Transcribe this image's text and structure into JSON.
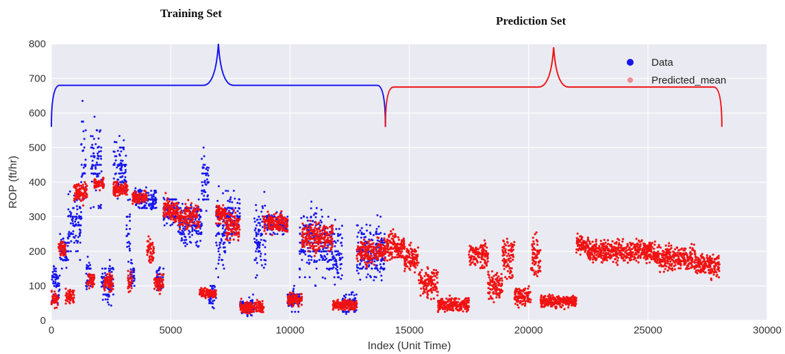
{
  "chart_data": {
    "type": "scatter",
    "annotations": [
      "Training Set",
      "Prediction Set"
    ],
    "xlabel": "Index (Unit Time)",
    "ylabel": "ROP (ft/hr)",
    "xlim": [
      0,
      30000
    ],
    "ylim": [
      0,
      800
    ],
    "xticks": [
      0,
      5000,
      10000,
      15000,
      20000,
      25000,
      30000
    ],
    "yticks": [
      0,
      100,
      200,
      300,
      400,
      500,
      600,
      700,
      800
    ],
    "grid": true,
    "legend_position": "top-right",
    "series": [
      {
        "name": "Data",
        "color": "#1515ee",
        "segments": [
          {
            "x": [
              0,
              350
            ],
            "center": 110,
            "spread": 70
          },
          {
            "x": [
              350,
              700
            ],
            "center": 200,
            "spread": 70
          },
          {
            "x": [
              700,
              1250
            ],
            "center": 280,
            "spread": 130
          },
          {
            "x": [
              1250,
              1450
            ],
            "center": 460,
            "spread": 200
          },
          {
            "x": [
              1450,
              1650
            ],
            "center": 140,
            "spread": 90
          },
          {
            "x": [
              1650,
              2100
            ],
            "center": 450,
            "spread": 170
          },
          {
            "x": [
              2100,
              2600
            ],
            "center": 110,
            "spread": 80
          },
          {
            "x": [
              2600,
              3150
            ],
            "center": 430,
            "spread": 120
          },
          {
            "x": [
              3150,
              3300
            ],
            "center": 250,
            "spread": 150
          },
          {
            "x": [
              3300,
              3500
            ],
            "center": 130,
            "spread": 50
          },
          {
            "x": [
              3500,
              4400
            ],
            "center": 350,
            "spread": 40
          },
          {
            "x": [
              4400,
              4700
            ],
            "center": 120,
            "spread": 50
          },
          {
            "x": [
              4700,
              5300
            ],
            "center": 320,
            "spread": 50
          },
          {
            "x": [
              5300,
              6300
            ],
            "center": 280,
            "spread": 100
          },
          {
            "x": [
              6300,
              6600
            ],
            "center": 400,
            "spread": 120
          },
          {
            "x": [
              6600,
              6900
            ],
            "center": 70,
            "spread": 50
          },
          {
            "x": [
              6900,
              7300
            ],
            "center": 250,
            "spread": 150
          },
          {
            "x": [
              7300,
              7900
            ],
            "center": 300,
            "spread": 100
          },
          {
            "x": [
              7900,
              8500
            ],
            "center": 40,
            "spread": 35
          },
          {
            "x": [
              8500,
              9000
            ],
            "center": 230,
            "spread": 150
          },
          {
            "x": [
              9000,
              9900
            ],
            "center": 280,
            "spread": 40
          },
          {
            "x": [
              9900,
              10400
            ],
            "center": 60,
            "spread": 40
          },
          {
            "x": [
              10400,
              11400
            ],
            "center": 230,
            "spread": 150
          },
          {
            "x": [
              11400,
              12200
            ],
            "center": 200,
            "spread": 130
          },
          {
            "x": [
              12200,
              12800
            ],
            "center": 50,
            "spread": 40
          },
          {
            "x": [
              12800,
              14000
            ],
            "center": 200,
            "spread": 120
          }
        ]
      },
      {
        "name": "Predicted_mean",
        "color": "#f01212",
        "segments": [
          {
            "x": [
              0,
              300
            ],
            "center": 60,
            "spread": 30
          },
          {
            "x": [
              300,
              600
            ],
            "center": 210,
            "spread": 40
          },
          {
            "x": [
              600,
              950
            ],
            "center": 70,
            "spread": 25
          },
          {
            "x": [
              950,
              1500
            ],
            "center": 370,
            "spread": 40
          },
          {
            "x": [
              1500,
              1800
            ],
            "center": 115,
            "spread": 30
          },
          {
            "x": [
              1800,
              2200
            ],
            "center": 395,
            "spread": 20
          },
          {
            "x": [
              2200,
              2600
            ],
            "center": 110,
            "spread": 40
          },
          {
            "x": [
              2600,
              3200
            ],
            "center": 380,
            "spread": 30
          },
          {
            "x": [
              3200,
              3400
            ],
            "center": 110,
            "spread": 40
          },
          {
            "x": [
              3400,
              4000
            ],
            "center": 355,
            "spread": 25
          },
          {
            "x": [
              4000,
              4300
            ],
            "center": 200,
            "spread": 60
          },
          {
            "x": [
              4300,
              4700
            ],
            "center": 110,
            "spread": 40
          },
          {
            "x": [
              4700,
              5300
            ],
            "center": 320,
            "spread": 50
          },
          {
            "x": [
              5300,
              6200
            ],
            "center": 300,
            "spread": 50
          },
          {
            "x": [
              6200,
              6900
            ],
            "center": 80,
            "spread": 20
          },
          {
            "x": [
              6900,
              7300
            ],
            "center": 310,
            "spread": 40
          },
          {
            "x": [
              7300,
              7900
            ],
            "center": 270,
            "spread": 60
          },
          {
            "x": [
              7900,
              8900
            ],
            "center": 40,
            "spread": 25
          },
          {
            "x": [
              8900,
              9900
            ],
            "center": 280,
            "spread": 40
          },
          {
            "x": [
              9900,
              10500
            ],
            "center": 60,
            "spread": 25
          },
          {
            "x": [
              10500,
              11800
            ],
            "center": 240,
            "spread": 60
          },
          {
            "x": [
              11800,
              12800
            ],
            "center": 45,
            "spread": 20
          },
          {
            "x": [
              12800,
              14000
            ],
            "center": 200,
            "spread": 50
          },
          {
            "x": [
              14000,
              14800
            ],
            "center": 215,
            "spread": 55
          },
          {
            "x": [
              14800,
              15400
            ],
            "center": 180,
            "spread": 60
          },
          {
            "x": [
              15400,
              16200
            ],
            "center": 110,
            "spread": 60
          },
          {
            "x": [
              16200,
              17500
            ],
            "center": 45,
            "spread": 30
          },
          {
            "x": [
              17500,
              18300
            ],
            "center": 190,
            "spread": 50
          },
          {
            "x": [
              18300,
              18900
            ],
            "center": 100,
            "spread": 60
          },
          {
            "x": [
              18900,
              19400
            ],
            "center": 180,
            "spread": 80
          },
          {
            "x": [
              19400,
              20100
            ],
            "center": 70,
            "spread": 40
          },
          {
            "x": [
              20100,
              20500
            ],
            "center": 180,
            "spread": 90
          },
          {
            "x": [
              20500,
              22000
            ],
            "center": 55,
            "spread": 25
          },
          {
            "x": [
              22000,
              22500
            ],
            "center": 220,
            "spread": 40
          },
          {
            "x": [
              22500,
              24500
            ],
            "center": 200,
            "spread": 45
          },
          {
            "x": [
              24500,
              25300
            ],
            "center": 200,
            "spread": 45
          },
          {
            "x": [
              25300,
              27000
            ],
            "center": 180,
            "spread": 50
          },
          {
            "x": [
              27000,
              28000
            ],
            "center": 160,
            "spread": 50
          }
        ]
      }
    ],
    "brackets": [
      {
        "series": "Data",
        "x_start": 0,
        "x_end": 14000,
        "y_level": 680,
        "y_peak": 800,
        "y_end": 560
      },
      {
        "series": "Predicted_mean",
        "x_start": 14000,
        "x_end": 28100,
        "y_level": 675,
        "y_peak": 790,
        "y_end": 560
      }
    ]
  },
  "colors": {
    "plot_background": "#eaeaf2",
    "grid": "#ffffff",
    "data": "#1515ee",
    "predicted_mean": "#f01212",
    "predicted_mean_legend": "#f28b8b"
  }
}
